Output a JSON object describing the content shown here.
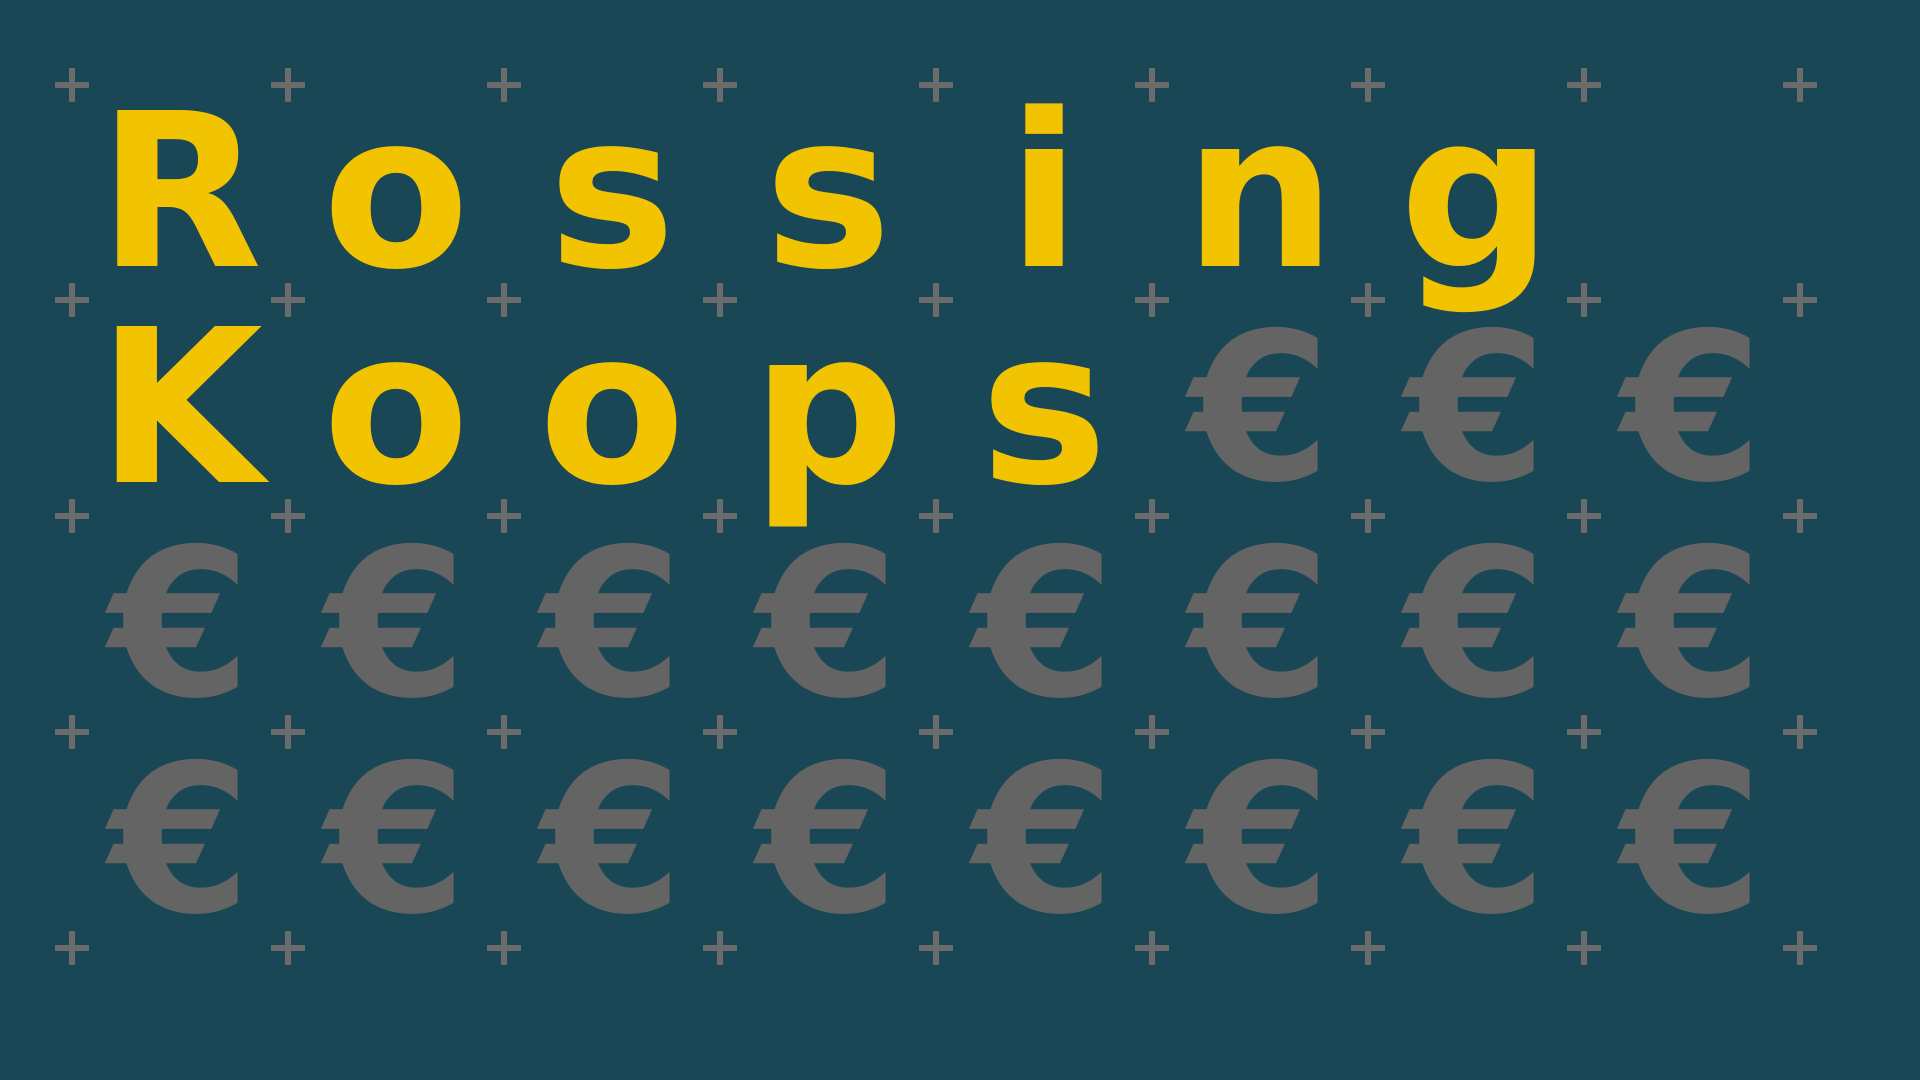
{
  "background_color": "#1a4756",
  "letter_color": "#f2c300",
  "symbol_color": "#646464",
  "plus_color": "#6b6b6b",
  "icons": {
    "plus": "plus-icon",
    "euro": "euro-icon"
  },
  "rows": [
    [
      "R",
      "o",
      "s",
      "s",
      "i",
      "n",
      "g",
      ""
    ],
    [
      "K",
      "o",
      "o",
      "p",
      "s",
      "€",
      "€",
      "€"
    ],
    [
      "€",
      "€",
      "€",
      "€",
      "€",
      "€",
      "€",
      "€"
    ],
    [
      "€",
      "€",
      "€",
      "€",
      "€",
      "€",
      "€",
      "€"
    ]
  ]
}
